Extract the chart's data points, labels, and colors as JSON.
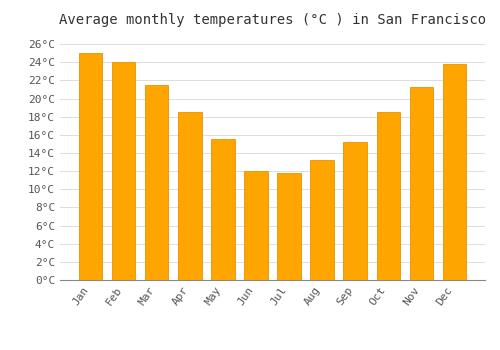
{
  "title": "Average monthly temperatures (°C ) in San Francisco",
  "months": [
    "Jan",
    "Feb",
    "Mar",
    "Apr",
    "May",
    "Jun",
    "Jul",
    "Aug",
    "Sep",
    "Oct",
    "Nov",
    "Dec"
  ],
  "values": [
    25.0,
    24.0,
    21.5,
    18.5,
    15.5,
    12.0,
    11.8,
    13.2,
    15.2,
    18.5,
    21.3,
    23.8
  ],
  "bar_color": "#FFA500",
  "bar_edge_color": "#E89400",
  "ylim": [
    0,
    27
  ],
  "yticks": [
    0,
    2,
    4,
    6,
    8,
    10,
    12,
    14,
    16,
    18,
    20,
    22,
    24,
    26
  ],
  "ytick_labels": [
    "0°C",
    "2°C",
    "4°C",
    "6°C",
    "8°C",
    "10°C",
    "12°C",
    "14°C",
    "16°C",
    "18°C",
    "20°C",
    "22°C",
    "24°C",
    "26°C"
  ],
  "background_color": "#FFFFFF",
  "grid_color": "#DDDDDD",
  "title_fontsize": 10,
  "tick_fontsize": 8,
  "bar_width": 0.7
}
